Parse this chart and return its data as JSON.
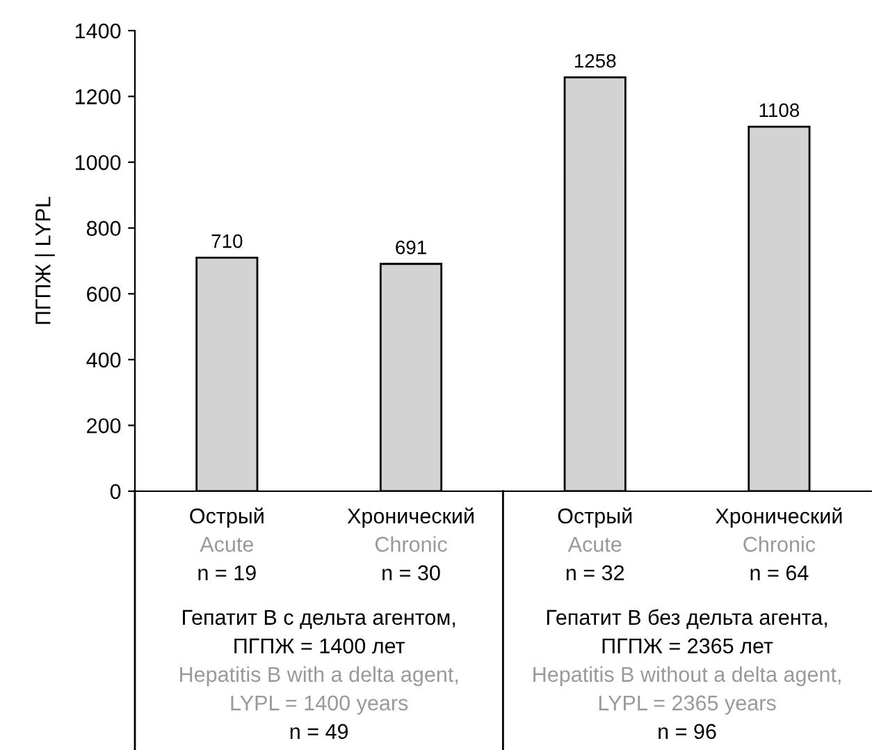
{
  "chart_data": {
    "type": "bar",
    "categories": [
      "Острый\nAcute\nn = 19",
      "Хронический\nChronic\nn = 30",
      "Острый\nAcute\nn = 32",
      "Хронический\nChronic\nn = 64"
    ],
    "values": [
      710,
      691,
      1258,
      1108
    ],
    "color": "#d3d3d3",
    "ylabel": "ПГПЖ | LYPL",
    "ylim": [
      0,
      1400
    ],
    "yticks": [
      0,
      200,
      400,
      600,
      800,
      1000,
      1200,
      1400
    ],
    "data_labels": true,
    "grid": false,
    "annotations": [
      "Гепатит B с дельта агентом,\nПГПЖ = 1400 лет\nHepatitis B with a delta agent,\nLYPL = 1400 years\nn = 49",
      "Гепатит B без дельта агента,\nПГПЖ = 2365 лет\nHepatitis B without a delta agent,\nLYPL = 2365 years\nn = 96"
    ]
  }
}
